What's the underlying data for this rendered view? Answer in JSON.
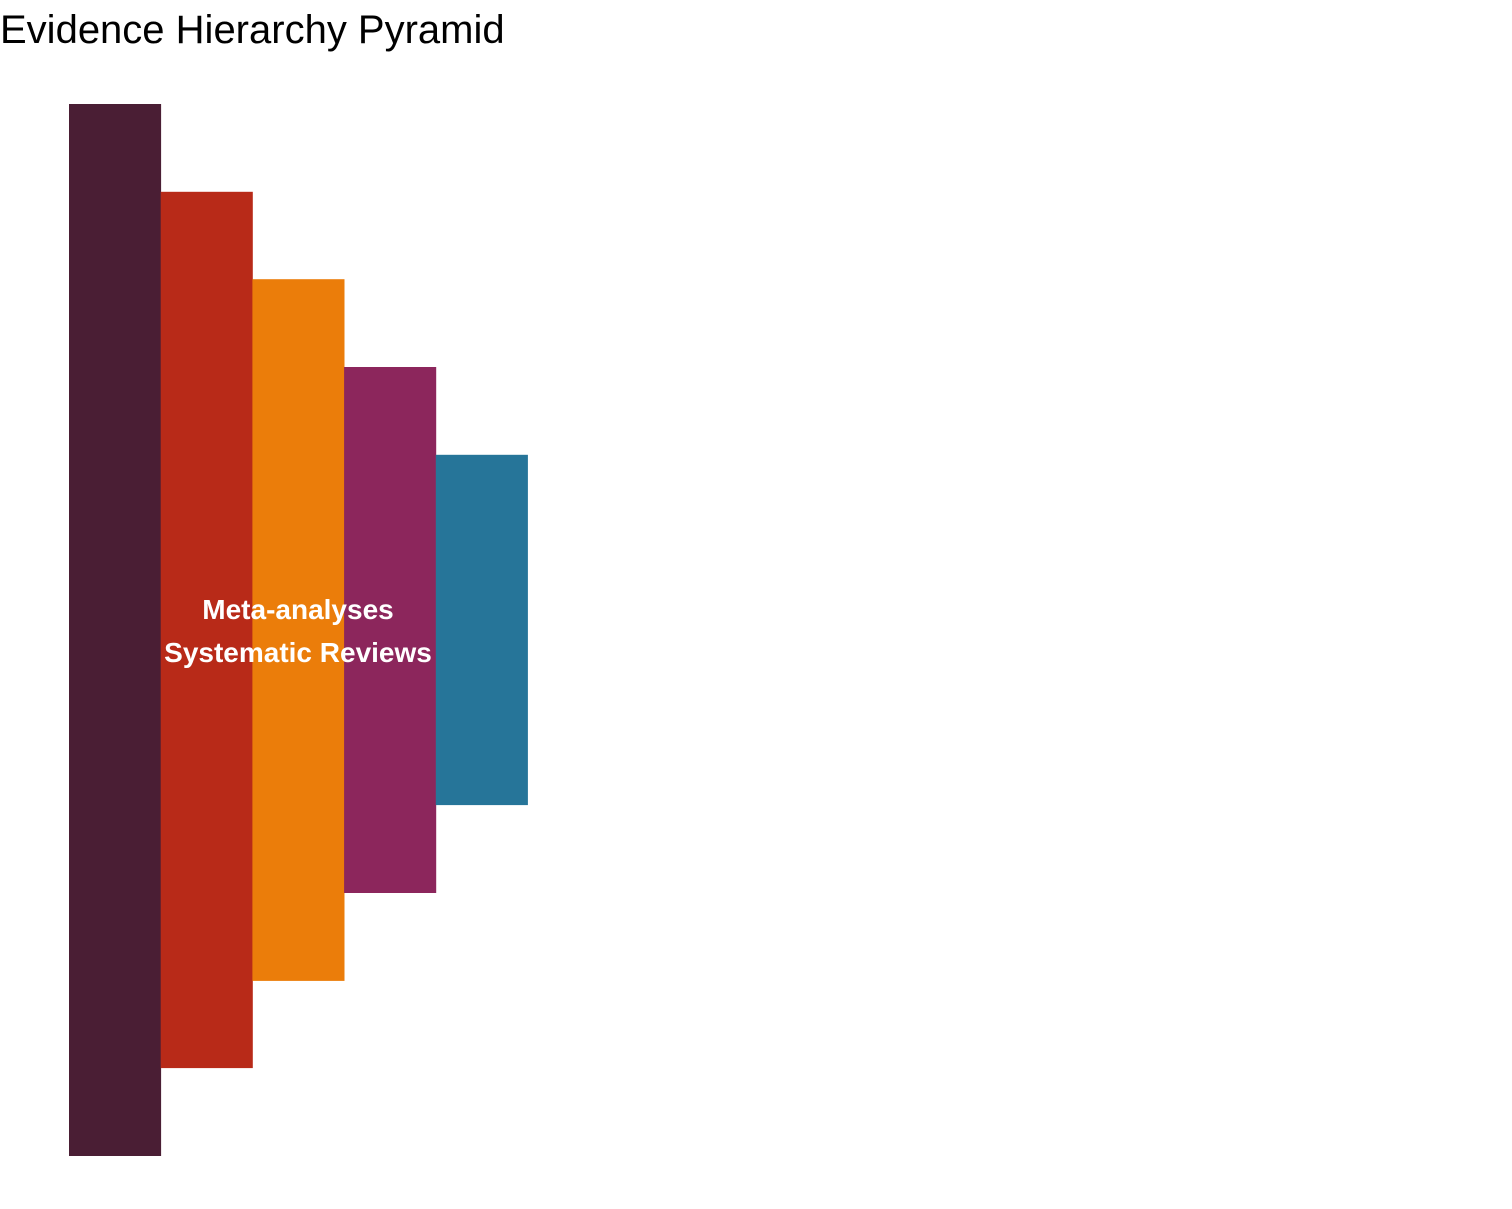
{
  "chart_data": {
    "type": "bar",
    "title": "Evidence Hierarchy Pyramid",
    "orientation": "stacked-tiers",
    "tiers": [
      {
        "level": 1,
        "height": 100,
        "color": "#4A1E34"
      },
      {
        "level": 2,
        "height": 83.3,
        "color": "#B82A18"
      },
      {
        "level": 3,
        "height": 66.7,
        "color": "#EB7D0A"
      },
      {
        "level": 4,
        "height": 50,
        "color": "#8C265C"
      },
      {
        "level": 5,
        "height": 33.3,
        "color": "#267599"
      }
    ],
    "annotations": [
      {
        "text": "Meta-analyses"
      },
      {
        "text": "Systematic Reviews"
      }
    ],
    "grid": false,
    "legend": "none"
  }
}
